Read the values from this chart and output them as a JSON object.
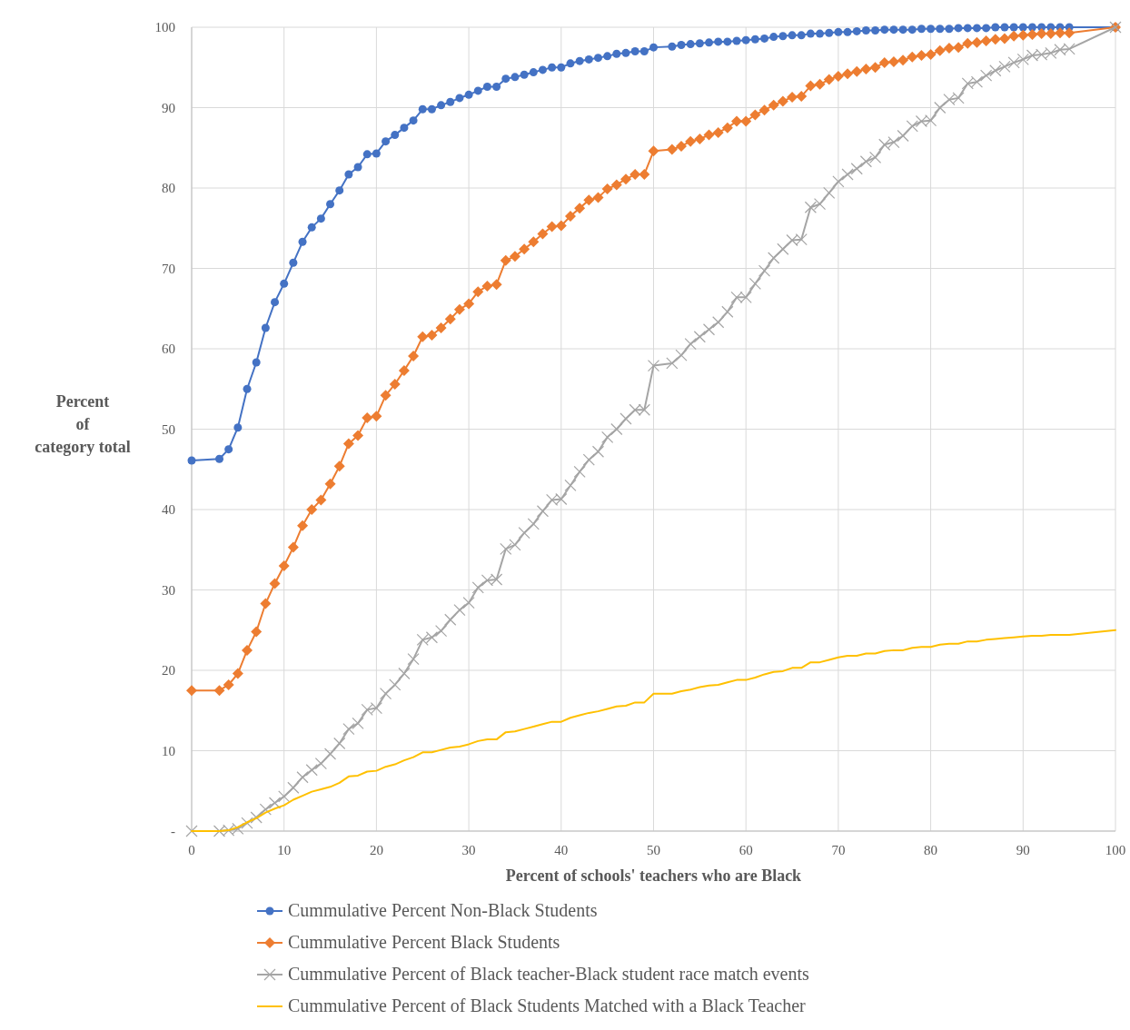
{
  "chart_data": {
    "type": "line",
    "xlabel": "Percent of schools' teachers who are Black",
    "ylabel": "Percent\nof\ncategory total",
    "x": [
      0,
      3,
      4,
      5,
      6,
      7,
      8,
      9,
      10,
      11,
      12,
      13,
      14,
      15,
      16,
      17,
      18,
      19,
      20,
      21,
      22,
      23,
      24,
      25,
      26,
      27,
      28,
      29,
      30,
      31,
      32,
      33,
      34,
      35,
      36,
      37,
      38,
      39,
      40,
      41,
      42,
      43,
      44,
      45,
      46,
      47,
      48,
      49,
      50,
      52,
      53,
      54,
      55,
      56,
      57,
      58,
      59,
      60,
      61,
      62,
      63,
      64,
      65,
      66,
      67,
      68,
      69,
      70,
      71,
      72,
      73,
      74,
      75,
      76,
      77,
      78,
      79,
      80,
      81,
      82,
      83,
      84,
      85,
      86,
      87,
      88,
      89,
      90,
      91,
      92,
      93,
      94,
      95,
      100
    ],
    "series": [
      {
        "name": "Cummulative Percent Non-Black Students",
        "color": "#4472c4",
        "marker": "circle",
        "values": [
          46.1,
          46.3,
          47.5,
          50.2,
          55.0,
          58.3,
          62.6,
          65.8,
          68.1,
          70.7,
          73.3,
          75.1,
          76.2,
          78.0,
          79.7,
          81.7,
          82.6,
          84.2,
          84.3,
          85.8,
          86.6,
          87.5,
          88.4,
          89.8,
          89.8,
          90.3,
          90.7,
          91.2,
          91.6,
          92.1,
          92.6,
          92.6,
          93.6,
          93.8,
          94.1,
          94.4,
          94.7,
          95.0,
          95.0,
          95.5,
          95.8,
          96.0,
          96.2,
          96.4,
          96.7,
          96.8,
          97.0,
          97.0,
          97.5,
          97.6,
          97.8,
          97.9,
          98.0,
          98.1,
          98.2,
          98.2,
          98.3,
          98.4,
          98.5,
          98.6,
          98.8,
          98.9,
          99.0,
          99.0,
          99.2,
          99.2,
          99.3,
          99.4,
          99.4,
          99.5,
          99.6,
          99.6,
          99.7,
          99.7,
          99.7,
          99.7,
          99.8,
          99.8,
          99.8,
          99.8,
          99.9,
          99.9,
          99.9,
          99.9,
          100,
          100,
          100,
          100,
          100,
          100,
          100,
          100,
          100,
          100
        ]
      },
      {
        "name": "Cummulative Percent Black Students",
        "color": "#ed7d31",
        "marker": "diamond",
        "values": [
          17.5,
          17.5,
          18.2,
          19.6,
          22.5,
          24.8,
          28.3,
          30.8,
          33.0,
          35.3,
          38.0,
          40.0,
          41.2,
          43.2,
          45.4,
          48.2,
          49.2,
          51.4,
          51.6,
          54.2,
          55.6,
          57.3,
          59.1,
          61.5,
          61.7,
          62.6,
          63.7,
          64.9,
          65.6,
          67.1,
          67.8,
          68.0,
          71.0,
          71.5,
          72.4,
          73.3,
          74.3,
          75.2,
          75.3,
          76.5,
          77.5,
          78.5,
          78.8,
          79.9,
          80.4,
          81.1,
          81.7,
          81.7,
          84.6,
          84.8,
          85.2,
          85.8,
          86.1,
          86.6,
          86.9,
          87.5,
          88.3,
          88.3,
          89.1,
          89.7,
          90.3,
          90.8,
          91.3,
          91.4,
          92.7,
          92.9,
          93.5,
          93.9,
          94.2,
          94.5,
          94.8,
          95.0,
          95.6,
          95.7,
          95.9,
          96.3,
          96.5,
          96.6,
          97.1,
          97.4,
          97.5,
          98.0,
          98.1,
          98.3,
          98.5,
          98.6,
          98.9,
          99.0,
          99.1,
          99.2,
          99.2,
          99.3,
          99.3,
          100
        ]
      },
      {
        "name": "Cummulative Percent of Black teacher-Black student race match events",
        "color": "#a5a5a5",
        "marker": "cross",
        "values": [
          0,
          0,
          0.1,
          0.3,
          1.0,
          1.7,
          2.7,
          3.5,
          4.3,
          5.4,
          6.7,
          7.6,
          8.4,
          9.6,
          10.9,
          12.7,
          13.4,
          15.1,
          15.3,
          17.1,
          18.2,
          19.6,
          21.4,
          23.8,
          24.1,
          24.9,
          26.3,
          27.5,
          28.4,
          30.3,
          31.2,
          31.3,
          35.1,
          35.6,
          37.1,
          38.2,
          39.8,
          41.2,
          41.3,
          43.0,
          44.7,
          46.2,
          47.2,
          49.0,
          50.0,
          51.3,
          52.4,
          52.4,
          57.9,
          58.2,
          59.2,
          60.6,
          61.5,
          62.4,
          63.3,
          64.6,
          66.4,
          66.4,
          68.1,
          69.7,
          71.3,
          72.4,
          73.5,
          73.6,
          77.6,
          78.0,
          79.4,
          80.8,
          81.7,
          82.4,
          83.3,
          83.8,
          85.4,
          85.7,
          86.5,
          87.7,
          88.3,
          88.4,
          90.0,
          91.0,
          91.2,
          93.0,
          93.2,
          94.0,
          94.6,
          95.1,
          95.6,
          96.0,
          96.5,
          96.6,
          96.8,
          97.2,
          97.3,
          100
        ]
      },
      {
        "name": "Cummulative Percent of Black Students Matched with a Black Teacher",
        "color": "#ffc000",
        "marker": "none",
        "values": [
          0,
          0,
          0.1,
          0.5,
          1.1,
          1.6,
          2.3,
          2.8,
          3.2,
          3.9,
          4.4,
          4.9,
          5.2,
          5.5,
          6.0,
          6.8,
          6.9,
          7.4,
          7.5,
          8.0,
          8.3,
          8.8,
          9.2,
          9.8,
          9.8,
          10.1,
          10.4,
          10.5,
          10.8,
          11.2,
          11.4,
          11.4,
          12.3,
          12.4,
          12.7,
          13.0,
          13.3,
          13.6,
          13.6,
          14.1,
          14.4,
          14.7,
          14.9,
          15.2,
          15.5,
          15.6,
          16.0,
          16.0,
          17.1,
          17.1,
          17.4,
          17.6,
          17.9,
          18.1,
          18.2,
          18.5,
          18.8,
          18.8,
          19.1,
          19.5,
          19.8,
          19.9,
          20.3,
          20.3,
          21.0,
          21.0,
          21.3,
          21.6,
          21.8,
          21.8,
          22.1,
          22.1,
          22.4,
          22.5,
          22.5,
          22.8,
          22.9,
          22.9,
          23.2,
          23.3,
          23.3,
          23.6,
          23.6,
          23.8,
          23.9,
          24.0,
          24.1,
          24.2,
          24.3,
          24.3,
          24.4,
          24.4,
          24.4,
          25.0
        ]
      }
    ],
    "xlim": [
      0,
      100
    ],
    "xticks": [
      0,
      10,
      20,
      30,
      40,
      50,
      60,
      70,
      80,
      90,
      100
    ],
    "ylim": [
      0,
      100
    ],
    "yticks": [
      {
        "value": 0,
        "label": "-"
      },
      10,
      20,
      30,
      40,
      50,
      60,
      70,
      80,
      90,
      100
    ],
    "grid": true,
    "legend": "bottom"
  }
}
